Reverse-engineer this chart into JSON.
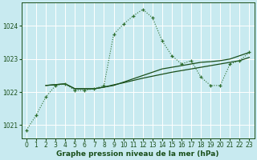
{
  "background_color": "#c8eaf0",
  "plot_bg_color": "#c8eaf0",
  "grid_color": "#ffffff",
  "line_color_dotted": "#2d6e2d",
  "line_color_solid": "#1a4f1a",
  "xlabel": "Graphe pression niveau de la mer (hPa)",
  "xlabel_fontsize": 6.5,
  "xlim": [
    -0.5,
    23.5
  ],
  "ylim": [
    1020.6,
    1024.7
  ],
  "yticks": [
    1021,
    1022,
    1023,
    1024
  ],
  "xticks": [
    0,
    1,
    2,
    3,
    4,
    5,
    6,
    7,
    8,
    9,
    10,
    11,
    12,
    13,
    14,
    15,
    16,
    17,
    18,
    19,
    20,
    21,
    22,
    23
  ],
  "series_dotted_x": [
    0,
    1,
    2,
    3,
    4,
    5,
    6,
    7,
    8,
    9,
    10,
    11,
    12,
    13,
    14,
    15,
    16,
    17,
    18,
    19,
    20,
    21,
    22,
    23
  ],
  "series_dotted_y": [
    1020.85,
    1021.3,
    1021.85,
    1022.2,
    1022.25,
    1022.05,
    1022.05,
    1022.1,
    1022.2,
    1023.75,
    1024.05,
    1024.3,
    1024.5,
    1024.25,
    1023.55,
    1023.1,
    1022.85,
    1022.95,
    1022.45,
    1022.2,
    1022.2,
    1022.85,
    1022.95,
    1023.2
  ],
  "series_solid1_x": [
    2,
    4,
    5,
    6,
    7,
    8,
    9,
    10,
    11,
    12,
    13,
    14,
    15,
    16,
    17,
    18,
    19,
    20,
    21,
    22,
    23
  ],
  "series_solid1_y": [
    1022.2,
    1022.25,
    1022.1,
    1022.1,
    1022.1,
    1022.15,
    1022.2,
    1022.3,
    1022.4,
    1022.5,
    1022.6,
    1022.7,
    1022.75,
    1022.8,
    1022.85,
    1022.9,
    1022.92,
    1022.95,
    1023.0,
    1023.1,
    1023.2
  ],
  "series_solid2_x": [
    2,
    4,
    5,
    6,
    7,
    8,
    9,
    10,
    11,
    12,
    13,
    14,
    15,
    16,
    17,
    18,
    19,
    20,
    21,
    22,
    23
  ],
  "series_solid2_y": [
    1022.2,
    1022.25,
    1022.1,
    1022.1,
    1022.1,
    1022.15,
    1022.22,
    1022.28,
    1022.35,
    1022.42,
    1022.48,
    1022.54,
    1022.6,
    1022.65,
    1022.7,
    1022.75,
    1022.8,
    1022.85,
    1022.9,
    1022.95,
    1023.05
  ]
}
